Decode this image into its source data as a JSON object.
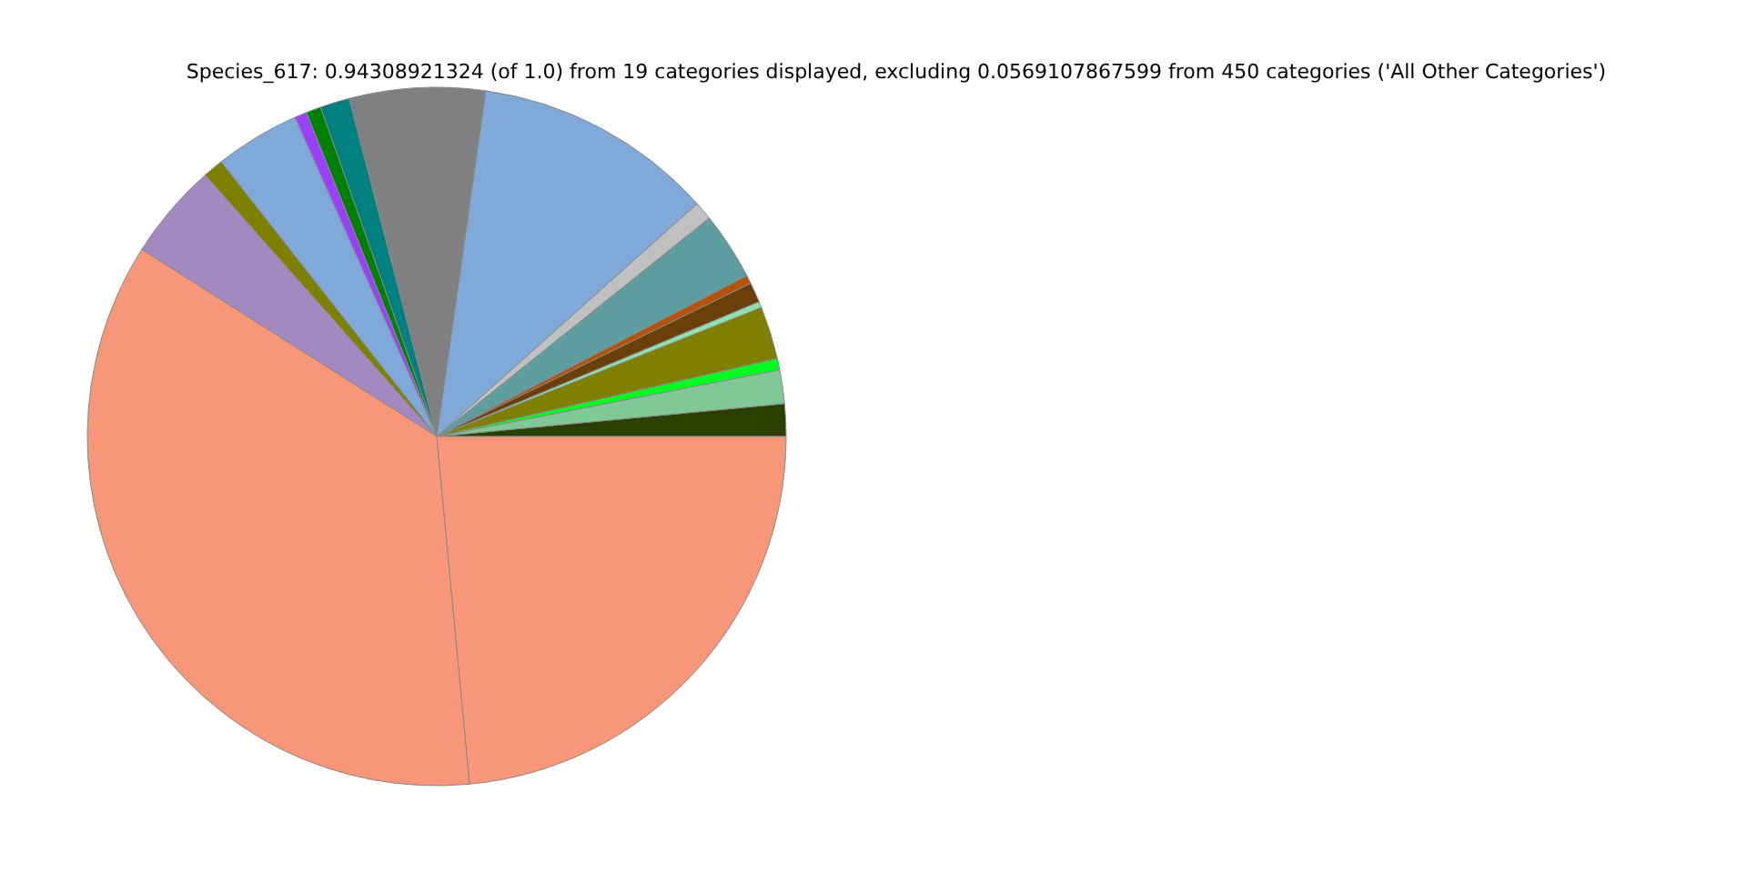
{
  "chart_data": {
    "type": "pie",
    "title": "Species_617: 0.94308921324 (of 1.0) from 19 categories displayed, excluding 0.0569107867599 from 450 categories ('All Other Categories')",
    "categories": [
      null,
      null,
      null,
      null,
      null,
      null,
      null,
      null,
      null,
      null,
      null,
      null,
      null,
      null,
      null,
      null,
      null,
      null,
      null
    ],
    "values": [
      1.5,
      1.56,
      0.53,
      2.44,
      0.28,
      0.92,
      0.39,
      3.14,
      0.86,
      11.14,
      6.28,
      1.36,
      0.69,
      0.56,
      3.94,
      0.94,
      4.47,
      35.5,
      23.5
    ],
    "colors": [
      "#2b3f00",
      "#80c896",
      "#00ff20",
      "#808000",
      "#90e0b0",
      "#6b3f0a",
      "#b45309",
      "#5f9ea0",
      "#c0c0c0",
      "#7ea9d9",
      "#808080",
      "#008080",
      "#008000",
      "#9b3fff",
      "#7ea9d9",
      "#808000",
      "#a489c0",
      "#f89678",
      "#f89678"
    ],
    "legend": false
  }
}
